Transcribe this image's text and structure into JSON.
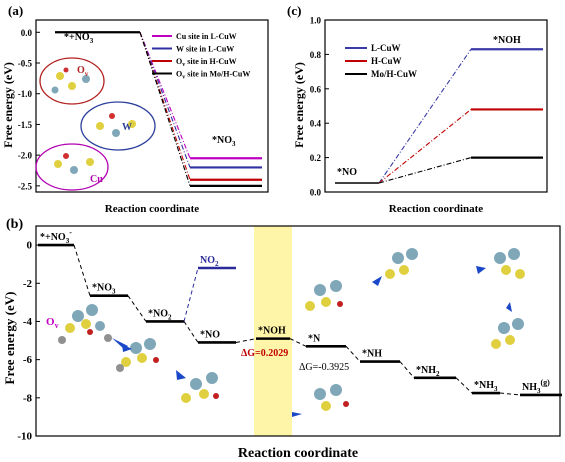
{
  "chart_data": [
    {
      "panel": "(a)",
      "type": "line",
      "xlabel": "Reaction coordinate",
      "ylabel": "Free energy (eV)",
      "ylim": [
        -2.6,
        0.2
      ],
      "yticks": [
        "0.0",
        "-0.5",
        "-1.0",
        "-1.5",
        "-2.0",
        "-2.5"
      ],
      "ytick_values": [
        0.0,
        -0.5,
        -1.0,
        -1.5,
        -2.0,
        -2.5
      ],
      "states": [
        "*+NO3-",
        "*NO3"
      ],
      "state_labels": [
        "*+NO",
        "3",
        "-",
        "*NO",
        "3"
      ],
      "series": [
        {
          "name": "Cu site in L-CuW",
          "color": "#c000c0",
          "values": [
            0.0,
            -2.05
          ]
        },
        {
          "name": "W site in L-CuW",
          "color": "#3030a0",
          "values": [
            0.0,
            -2.2
          ]
        },
        {
          "name": "Ov site in H-CuW",
          "color": "#c00000",
          "values": [
            0.0,
            -2.4
          ]
        },
        {
          "name": "Ov site in Mo/H-CuW",
          "color": "#000000",
          "values": [
            0.0,
            -2.5
          ]
        }
      ],
      "legend": [
        {
          "text": "Cu site in L-CuW",
          "sub": "",
          "rest": ""
        },
        {
          "text": "W site in L-CuW",
          "sub": "",
          "rest": ""
        },
        {
          "text": "O",
          "sub": "v",
          "rest": " site in H-CuW"
        },
        {
          "text": "O",
          "sub": "v",
          "rest": " site in Mo/H-CuW"
        }
      ],
      "inset_labels": {
        "ov": "O",
        "ov_sub": "v",
        "w": "W",
        "cu": "Cu"
      },
      "legend_position": "top-right"
    },
    {
      "panel": "(c)",
      "type": "line",
      "xlabel": "Reaction coordinate",
      "ylabel": "Free energy (eV)",
      "ylim": [
        0.0,
        1.0
      ],
      "yticks": [
        "0.0",
        "0.2",
        "0.4",
        "0.6",
        "0.8",
        "1.0"
      ],
      "ytick_values": [
        0.0,
        0.2,
        0.4,
        0.6,
        0.8,
        1.0
      ],
      "states": [
        "*NO",
        "*NOH"
      ],
      "series": [
        {
          "name": "L-CuW",
          "color": "#3a3aa8",
          "values": [
            0.0,
            0.83
          ]
        },
        {
          "name": "H-CuW",
          "color": "#c00000",
          "values": [
            0.0,
            0.48
          ]
        },
        {
          "name": "Mo/H-CuW",
          "color": "#000000",
          "values": [
            0.0,
            0.2
          ]
        }
      ],
      "legend_position": "top-left"
    },
    {
      "panel": "(b)",
      "type": "line",
      "xlabel": "Reaction coordinate",
      "ylabel": "Free energy (eV)",
      "ylim": [
        -10,
        1
      ],
      "yticks": [
        "0",
        "-2",
        "-4",
        "-6",
        "-8",
        "-10"
      ],
      "ytick_values": [
        0,
        -2,
        -4,
        -6,
        -8,
        -10
      ],
      "levels": [
        {
          "id": "s0",
          "label": "*+NO",
          "sub": "3",
          "sup": "-",
          "value": 0.0
        },
        {
          "id": "s1",
          "label": "*NO",
          "sub": "3",
          "sup": "",
          "value": -2.65
        },
        {
          "id": "s2",
          "label": "*NO",
          "sub": "2",
          "sup": "",
          "value": -4.0
        },
        {
          "id": "s2b",
          "label": "NO",
          "sub": "2",
          "sup": "",
          "value": -1.2
        },
        {
          "id": "s3",
          "label": "*NO",
          "sub": "",
          "sup": "",
          "value": -5.1
        },
        {
          "id": "s4",
          "label": "*NOH",
          "sub": "",
          "sup": "",
          "value": -4.9
        },
        {
          "id": "s5",
          "label": "*N",
          "sub": "",
          "sup": "",
          "value": -5.3
        },
        {
          "id": "s6",
          "label": "*NH",
          "sub": "",
          "sup": "",
          "value": -6.1
        },
        {
          "id": "s7",
          "label": "*NH",
          "sub": "2",
          "sup": "",
          "value": -6.95
        },
        {
          "id": "s8",
          "label": "*NH",
          "sub": "3",
          "sup": "",
          "value": -7.75
        },
        {
          "id": "s9",
          "label": "NH",
          "sub": "3",
          "sup": "(g)",
          "value": -7.85
        }
      ],
      "annotations": {
        "dg1": "ΔG=0.2029",
        "dg2": "ΔG=-0.3925",
        "ov": "O",
        "ov_sub": "v"
      },
      "colors": {
        "highlight": "#fff5a8",
        "no2_line": "#2a2a9a",
        "dg1": "#c00000",
        "ov": "#c000c0"
      }
    }
  ]
}
